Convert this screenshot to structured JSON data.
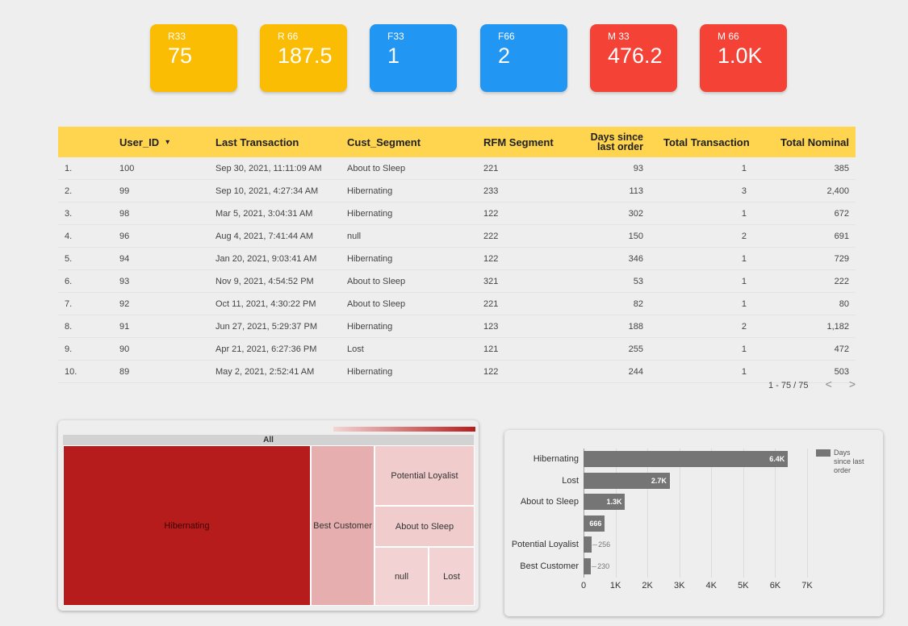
{
  "kpis": [
    {
      "label": "R33",
      "value": "75",
      "color": "yellow"
    },
    {
      "label": "R 66",
      "value": "187.5",
      "color": "yellow"
    },
    {
      "label": "F33",
      "value": "1",
      "color": "blue"
    },
    {
      "label": "F66",
      "value": "2",
      "color": "blue"
    },
    {
      "label": "M 33",
      "value": "476.2",
      "color": "red"
    },
    {
      "label": "M 66",
      "value": "1.0K",
      "color": "red"
    }
  ],
  "table": {
    "headers": {
      "user_id": "User_ID",
      "sort_icon": "▾",
      "last_transaction": "Last Transaction",
      "cust_segment": "Cust_Segment",
      "rfm_segment": "RFM Segment",
      "days_line1": "Days since",
      "days_line2": "last order",
      "total_transaction": "Total Transaction",
      "total_nominal": "Total Nominal"
    },
    "rows": [
      {
        "idx": "1.",
        "user_id": "100",
        "last": "Sep 30, 2021, 11:11:09 AM",
        "seg": "About to Sleep",
        "rfm": "221",
        "days": "93",
        "tx": "1",
        "nominal": "385"
      },
      {
        "idx": "2.",
        "user_id": "99",
        "last": "Sep 10, 2021, 4:27:34 AM",
        "seg": "Hibernating",
        "rfm": "233",
        "days": "113",
        "tx": "3",
        "nominal": "2,400"
      },
      {
        "idx": "3.",
        "user_id": "98",
        "last": "Mar 5, 2021, 3:04:31 AM",
        "seg": "Hibernating",
        "rfm": "122",
        "days": "302",
        "tx": "1",
        "nominal": "672"
      },
      {
        "idx": "4.",
        "user_id": "96",
        "last": "Aug 4, 2021, 7:41:44 AM",
        "seg": "null",
        "rfm": "222",
        "days": "150",
        "tx": "2",
        "nominal": "691"
      },
      {
        "idx": "5.",
        "user_id": "94",
        "last": "Jan 20, 2021, 9:03:41 AM",
        "seg": "Hibernating",
        "rfm": "122",
        "days": "346",
        "tx": "1",
        "nominal": "729"
      },
      {
        "idx": "6.",
        "user_id": "93",
        "last": "Nov 9, 2021, 4:54:52 PM",
        "seg": "About to Sleep",
        "rfm": "321",
        "days": "53",
        "tx": "1",
        "nominal": "222"
      },
      {
        "idx": "7.",
        "user_id": "92",
        "last": "Oct 11, 2021, 4:30:22 PM",
        "seg": "About to Sleep",
        "rfm": "221",
        "days": "82",
        "tx": "1",
        "nominal": "80"
      },
      {
        "idx": "8.",
        "user_id": "91",
        "last": "Jun 27, 2021, 5:29:37 PM",
        "seg": "Hibernating",
        "rfm": "123",
        "days": "188",
        "tx": "2",
        "nominal": "1,182"
      },
      {
        "idx": "9.",
        "user_id": "90",
        "last": "Apr 21, 2021, 6:27:36 PM",
        "seg": "Lost",
        "rfm": "121",
        "days": "255",
        "tx": "1",
        "nominal": "472"
      },
      {
        "idx": "10.",
        "user_id": "89",
        "last": "May 2, 2021, 2:52:41 AM",
        "seg": "Hibernating",
        "rfm": "122",
        "days": "244",
        "tx": "1",
        "nominal": "503"
      }
    ],
    "pager": {
      "text": "1 - 75 / 75",
      "prev": "<",
      "next": ">"
    }
  },
  "treemap": {
    "root_label": "All",
    "cells": [
      {
        "label": "Hibernating",
        "color": "#b71c1c"
      },
      {
        "label": "Best Customer",
        "color": "#e6aeae"
      },
      {
        "label": "Potential Loyalist",
        "color": "#f0cccc"
      },
      {
        "label": "About to Sleep",
        "color": "#f0cccc"
      },
      {
        "label": "null",
        "color": "#f2d2d2"
      },
      {
        "label": "Lost",
        "color": "#f2d2d2"
      }
    ]
  },
  "chart_data": {
    "type": "bar",
    "orientation": "horizontal",
    "categories": [
      "Hibernating",
      "Lost",
      "About to Sleep",
      "",
      "Potential Loyalist",
      "Best Customer"
    ],
    "series": [
      {
        "name": "Days since last order",
        "values": [
          6400,
          2700,
          1300,
          666,
          256,
          230
        ]
      }
    ],
    "value_labels": [
      "6.4K",
      "2.7K",
      "1.3K",
      "666",
      "256",
      "230"
    ],
    "xlim": [
      0,
      7000
    ],
    "xticks": [
      "0",
      "1K",
      "2K",
      "3K",
      "4K",
      "5K",
      "6K",
      "7K"
    ],
    "legend": {
      "position": "top-right",
      "label": "Days since last order",
      "lines": [
        "Days",
        "since last",
        "order"
      ]
    },
    "bar_color": "#757575",
    "grid": true
  }
}
